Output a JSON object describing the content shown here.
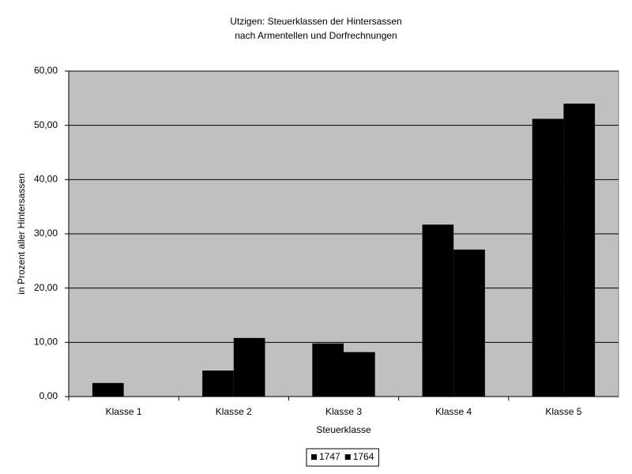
{
  "chart_data": {
    "type": "bar",
    "title": [
      "Utzigen: Steuerklassen der Hintersassen",
      "nach Armentellen und Dorfrechnungen"
    ],
    "x_label": "Steuerklasse",
    "y_label": "in Prozent aller Hintersassen",
    "categories": [
      "Klasse 1",
      "Klasse 2",
      "Klasse 3",
      "Klasse 4",
      "Klasse 5"
    ],
    "series": [
      {
        "name": "1747",
        "color": "#000000",
        "values": [
          2.5,
          4.8,
          9.8,
          31.7,
          51.2
        ]
      },
      {
        "name": "1764",
        "color": "#000000",
        "values": [
          0,
          10.8,
          8.2,
          27.1,
          54.0
        ]
      }
    ],
    "ylim": [
      0,
      60
    ],
    "yticks": [
      {
        "value": 0,
        "label": "0,00"
      },
      {
        "value": 10,
        "label": "10,00"
      },
      {
        "value": 20,
        "label": "20,00"
      },
      {
        "value": 30,
        "label": "30,00"
      },
      {
        "value": 40,
        "label": "40,00"
      },
      {
        "value": 50,
        "label": "50,00"
      },
      {
        "value": 60,
        "label": "60,00"
      }
    ],
    "grid": true,
    "plot_background": "#c0c0c0",
    "legend": "bottom"
  }
}
